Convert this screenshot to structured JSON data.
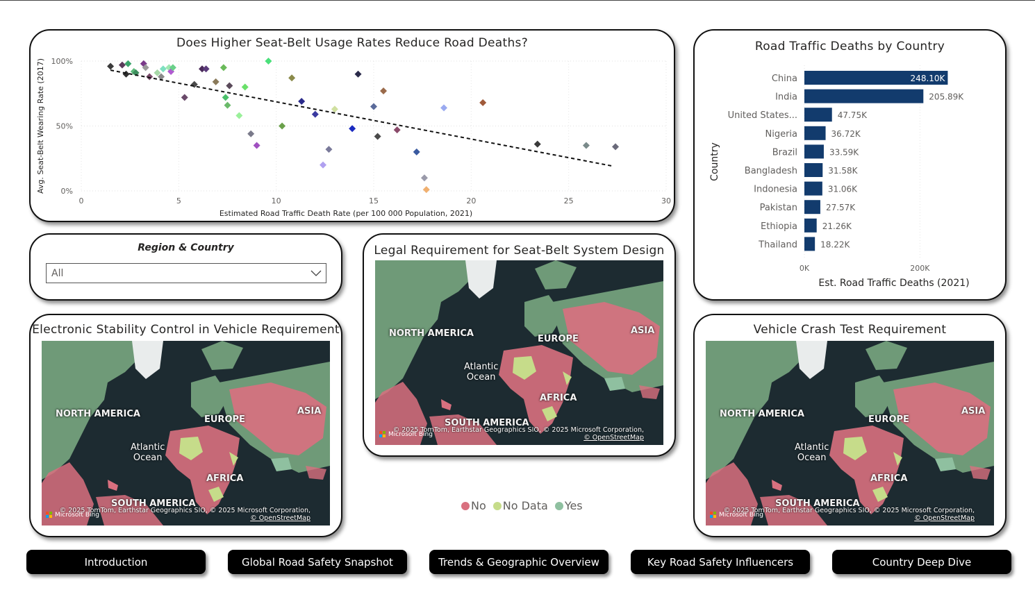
{
  "colors": {
    "no": "#d9707f",
    "nodata": "#c6dc8a",
    "yes": "#8fc0a0",
    "bar": "#123b6d",
    "trend": "#111111"
  },
  "scatter": {
    "title": "Does Higher Seat-Belt Usage Rates Reduce Road Deaths?",
    "chart_data": {
      "type": "scatter",
      "title": "Does Higher Seat-Belt Usage Rates Reduce Road Deaths?",
      "xlabel": "Estimated Road Traffic Death Rate (per 100 000 Population, 2021)",
      "ylabel": "Avg. Seat-Belt Wearing Rate (2017)",
      "xlim": [
        0,
        30
      ],
      "ylim": [
        0,
        100
      ],
      "xticks": [
        "0",
        "5",
        "10",
        "15",
        "20",
        "25",
        "30"
      ],
      "yticks": [
        "0%",
        "50%",
        "100%"
      ],
      "trendline": [
        [
          1.5,
          93
        ],
        [
          27.3,
          19
        ]
      ],
      "points": [
        {
          "x": 1.5,
          "y": 96,
          "c": "#3a3a3a"
        },
        {
          "x": 2.1,
          "y": 97,
          "c": "#5a3a5a"
        },
        {
          "x": 2.4,
          "y": 98,
          "c": "#3aa36a"
        },
        {
          "x": 2.3,
          "y": 90,
          "c": "#2e2e2e"
        },
        {
          "x": 2.7,
          "y": 92,
          "c": "#5cba7a"
        },
        {
          "x": 2.8,
          "y": 91,
          "c": "#3e8e5e"
        },
        {
          "x": 3.2,
          "y": 98,
          "c": "#7a3a8a"
        },
        {
          "x": 3.3,
          "y": 95,
          "c": "#9a9a9a"
        },
        {
          "x": 3.5,
          "y": 88,
          "c": "#7a4a6a"
        },
        {
          "x": 3.9,
          "y": 91,
          "c": "#a7d7a7"
        },
        {
          "x": 4.1,
          "y": 88,
          "c": "#8a8a8a"
        },
        {
          "x": 4.2,
          "y": 94,
          "c": "#7ee0c0"
        },
        {
          "x": 4.5,
          "y": 95,
          "c": "#9ee8b0"
        },
        {
          "x": 4.6,
          "y": 92,
          "c": "#b05ad0"
        },
        {
          "x": 4.7,
          "y": 95,
          "c": "#6ad08a"
        },
        {
          "x": 5.3,
          "y": 72,
          "c": "#6a4a6a"
        },
        {
          "x": 5.8,
          "y": 82,
          "c": "#4a4a4a"
        },
        {
          "x": 6.2,
          "y": 94,
          "c": "#4a2a5a"
        },
        {
          "x": 6.4,
          "y": 94,
          "c": "#5a3a7a"
        },
        {
          "x": 6.9,
          "y": 84,
          "c": "#8a7a5a"
        },
        {
          "x": 7.3,
          "y": 95,
          "c": "#6aba5a"
        },
        {
          "x": 7.4,
          "y": 72,
          "c": "#4ac06a"
        },
        {
          "x": 7.5,
          "y": 66,
          "c": "#6aba6a"
        },
        {
          "x": 7.6,
          "y": 81,
          "c": "#5a4a5a"
        },
        {
          "x": 8.1,
          "y": 58,
          "c": "#9af09a"
        },
        {
          "x": 8.4,
          "y": 80,
          "c": "#6ae06a"
        },
        {
          "x": 8.7,
          "y": 44,
          "c": "#7a7a8a"
        },
        {
          "x": 9.0,
          "y": 35,
          "c": "#a050c0"
        },
        {
          "x": 9.6,
          "y": 100,
          "c": "#4ae07a"
        },
        {
          "x": 10.3,
          "y": 50,
          "c": "#6aa04a"
        },
        {
          "x": 10.8,
          "y": 87,
          "c": "#8a8a4a"
        },
        {
          "x": 11.3,
          "y": 69,
          "c": "#2a2a8a"
        },
        {
          "x": 12.0,
          "y": 59,
          "c": "#3a3aa0"
        },
        {
          "x": 12.4,
          "y": 20,
          "c": "#b0a0f0"
        },
        {
          "x": 12.7,
          "y": 32,
          "c": "#7a7a9a"
        },
        {
          "x": 13.0,
          "y": 63,
          "c": "#d0e0a0"
        },
        {
          "x": 13.9,
          "y": 48,
          "c": "#1a2ac0"
        },
        {
          "x": 14.2,
          "y": 90,
          "c": "#2a2a4a"
        },
        {
          "x": 15.0,
          "y": 65,
          "c": "#5a6a9a"
        },
        {
          "x": 15.2,
          "y": 42,
          "c": "#4a4a4a"
        },
        {
          "x": 15.5,
          "y": 77,
          "c": "#9a6a4a"
        },
        {
          "x": 16.2,
          "y": 47,
          "c": "#8a4a6a"
        },
        {
          "x": 17.2,
          "y": 30,
          "c": "#3a5aa0"
        },
        {
          "x": 17.6,
          "y": 10,
          "c": "#9a9aaa"
        },
        {
          "x": 17.7,
          "y": 1,
          "c": "#f0b070"
        },
        {
          "x": 18.6,
          "y": 64,
          "c": "#9aaaf0"
        },
        {
          "x": 20.6,
          "y": 68,
          "c": "#a05a3a"
        },
        {
          "x": 23.4,
          "y": 36,
          "c": "#3a3a3a"
        },
        {
          "x": 25.9,
          "y": 35,
          "c": "#7a8a8a"
        },
        {
          "x": 27.4,
          "y": 34,
          "c": "#6a6a7a"
        }
      ]
    }
  },
  "bars": {
    "title": "Road Traffic Deaths by Country",
    "chart_data": {
      "type": "bar",
      "title": "Road Traffic Deaths by Country",
      "ylabel": "Country",
      "xlabel": "Est. Road Traffic Deaths (2021)",
      "xlim": [
        0,
        250000
      ],
      "xticks": [
        "0K",
        "200K"
      ],
      "categories": [
        "China",
        "India",
        "United States...",
        "Nigeria",
        "Brazil",
        "Bangladesh",
        "Indonesia",
        "Pakistan",
        "Ethiopia",
        "Thailand"
      ],
      "values": [
        248100,
        205890,
        47750,
        36720,
        33590,
        31580,
        31060,
        27570,
        21260,
        18220
      ],
      "labels": [
        "248.10K",
        "205.89K",
        "47.75K",
        "36.72K",
        "33.59K",
        "31.58K",
        "31.06K",
        "27.57K",
        "21.26K",
        "18.22K"
      ]
    }
  },
  "slicer": {
    "title": "Region & Country",
    "value": "All"
  },
  "maps": {
    "esc": {
      "title": "Electronic Stability Control in Vehicle Requirement"
    },
    "legal": {
      "title": "Legal Requirement for Seat-Belt System Design"
    },
    "crash": {
      "title": "Vehicle Crash Test Requirement"
    },
    "labels": {
      "north_america": "NORTH AMERICA",
      "europe": "EUROPE",
      "asia": "ASIA",
      "africa": "AFRICA",
      "south_america": "SOUTH AMERICA",
      "atlantic": "Atlantic",
      "ocean": "Ocean"
    },
    "bing": "Microsoft Bing",
    "copyright": "© 2025 TomTom, Earthstar Geographics SIO, © 2025 Microsoft Corporation,",
    "osm": "© OpenStreetMap"
  },
  "legend": {
    "no": "No",
    "nodata": "No Data",
    "yes": "Yes"
  },
  "nav": [
    "Introduction",
    "Global Road Safety Snapshot",
    "Trends & Geographic Overview",
    "Key Road Safety Influencers",
    "Country Deep Dive"
  ]
}
